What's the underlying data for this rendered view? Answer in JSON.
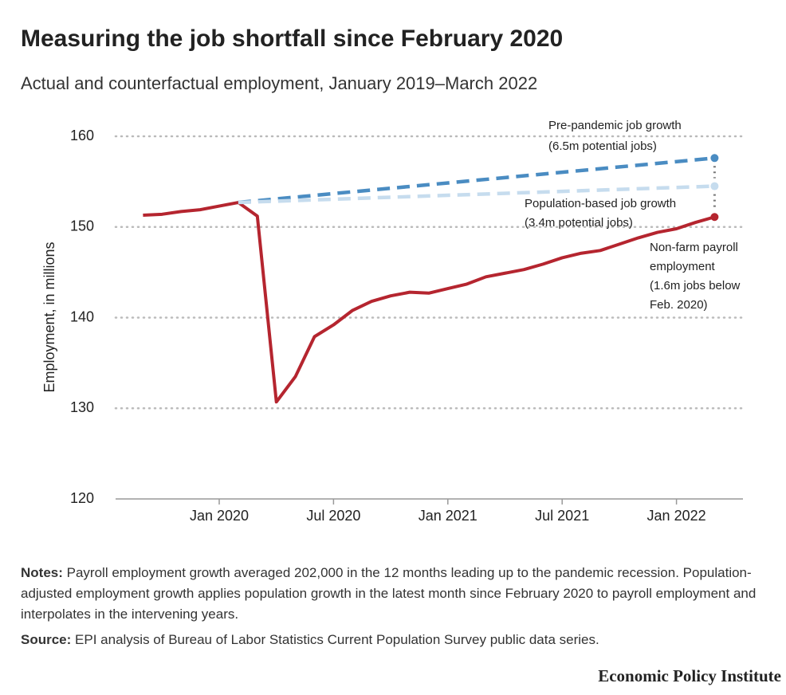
{
  "chart_data": {
    "type": "line",
    "title": "Measuring the job shortfall since February 2020",
    "subtitle": "Actual and counterfactual employment, January 2019–March 2022",
    "y_label": "Employment, in millions",
    "xlim": [
      "2019-08",
      "2022-05"
    ],
    "xticks": [
      {
        "value": "2020-01",
        "label": "Jan 2020"
      },
      {
        "value": "2020-07",
        "label": "Jul 2020"
      },
      {
        "value": "2021-01",
        "label": "Jan 2021"
      },
      {
        "value": "2021-07",
        "label": "Jul 2021"
      },
      {
        "value": "2022-01",
        "label": "Jan 2022"
      }
    ],
    "ylim": [
      120,
      160
    ],
    "yticks": [
      120,
      130,
      140,
      150,
      160
    ],
    "grid": true,
    "series": [
      {
        "label_lines": [
          "Non-farm payroll",
          "employment",
          "(1.6m jobs below",
          "Feb. 2020)"
        ],
        "color": "#b5252f",
        "dashed": false,
        "x": [
          "2019-09",
          "2019-10",
          "2019-11",
          "2019-12",
          "2020-01",
          "2020-02",
          "2020-03",
          "2020-04",
          "2020-05",
          "2020-06",
          "2020-07",
          "2020-08",
          "2020-09",
          "2020-10",
          "2020-11",
          "2020-12",
          "2021-01",
          "2021-02",
          "2021-03",
          "2021-04",
          "2021-05",
          "2021-06",
          "2021-07",
          "2021-08",
          "2021-09",
          "2021-10",
          "2021-11",
          "2021-12",
          "2022-01",
          "2022-02",
          "2022-03"
        ],
        "values": [
          151.3,
          151.4,
          151.7,
          151.9,
          152.3,
          152.7,
          151.2,
          130.7,
          133.5,
          137.9,
          139.2,
          140.8,
          141.8,
          142.4,
          142.8,
          142.7,
          143.2,
          143.7,
          144.5,
          144.9,
          145.3,
          145.9,
          146.6,
          147.1,
          147.4,
          148.1,
          148.8,
          149.4,
          149.8,
          150.5,
          151.1
        ]
      },
      {
        "label_lines": [
          "Pre-pandemic job growth",
          "(6.5m potential jobs)"
        ],
        "color": "#4a8cc2",
        "dashed": true,
        "x": [
          "2020-02",
          "2022-03"
        ],
        "values": [
          152.7,
          157.6
        ]
      },
      {
        "label_lines": [
          "Population-based job growth",
          "(3.4m potential jobs)"
        ],
        "color": "#c6dcee",
        "dashed": true,
        "x": [
          "2020-02",
          "2022-03"
        ],
        "values": [
          152.7,
          154.5
        ]
      }
    ]
  },
  "notes": {
    "label": "Notes:",
    "text": "Payroll employment growth averaged 202,000 in the 12 months leading up to the pandemic recession. Population-adjusted employment growth applies population growth in the latest month since February 2020 to payroll employment and interpolates in the intervening years."
  },
  "source": {
    "label": "Source:",
    "text": "EPI analysis of Bureau of Labor Statistics Current Population Survey public data series."
  },
  "brand": "Economic Policy Institute"
}
